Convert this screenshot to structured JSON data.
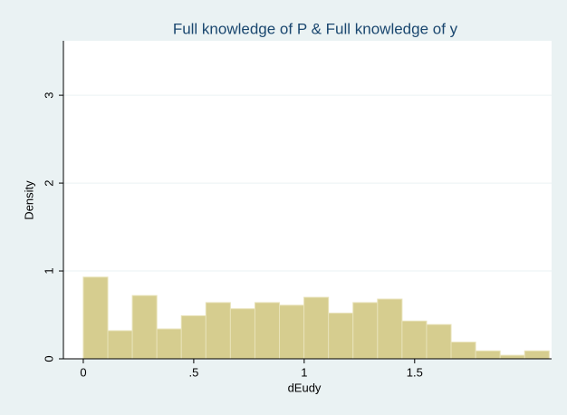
{
  "chart_data": {
    "type": "histogram",
    "title": "Full knowledge of P & Full knowledge of y",
    "x_label": "dEudy",
    "y_label": "Density",
    "bins": [
      0,
      0.111,
      0.222,
      0.333,
      0.444,
      0.555,
      0.666,
      0.777,
      0.888,
      0.999,
      1.11,
      1.221,
      1.332,
      1.443,
      1.554,
      1.665,
      1.776,
      1.887,
      1.998,
      2.109
    ],
    "values": [
      0.93,
      0.32,
      0.72,
      0.34,
      0.49,
      0.64,
      0.57,
      0.64,
      0.61,
      0.7,
      0.52,
      0.64,
      0.68,
      0.43,
      0.39,
      0.19,
      0.09,
      0.04,
      0.09
    ],
    "color": "#d6cd8f",
    "xlim": [
      -0.09,
      2.12
    ],
    "xticks": [
      0,
      {
        "value": 0.5,
        "label": ".5"
      },
      1,
      1.5
    ],
    "ylim": [
      0,
      3.62
    ],
    "yticks": [
      0,
      1,
      2,
      3
    ],
    "grid": true
  }
}
